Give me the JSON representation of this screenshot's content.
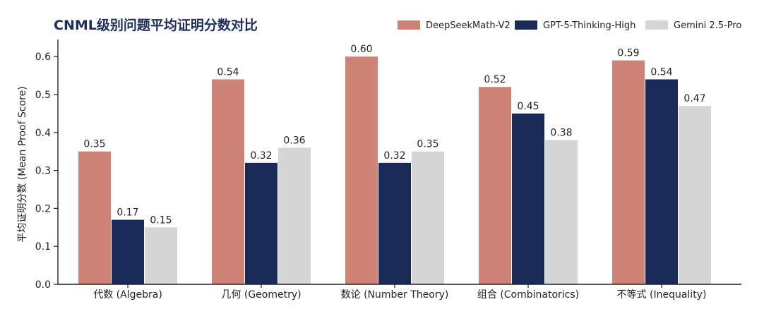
{
  "chart_data": {
    "type": "bar",
    "title": "CNML级别问题平均证明分数对比",
    "xlabel": "",
    "ylabel": "平均证明分数 (Mean Proof Score)",
    "ylim": [
      0,
      0.65
    ],
    "yticks": [
      "0.0",
      "0.1",
      "0.2",
      "0.3",
      "0.4",
      "0.5",
      "0.6"
    ],
    "grid": false,
    "legend_position": "top-right",
    "categories": [
      "代数 (Algebra)",
      "几何 (Geometry)",
      "数论 (Number Theory)",
      "组合 (Combinatorics)",
      "不等式 (Inequality)"
    ],
    "series": [
      {
        "name": "DeepSeekMath-V2",
        "color": "#cf8276",
        "values": [
          0.35,
          0.54,
          0.6,
          0.52,
          0.59
        ],
        "labels": [
          "0.35",
          "0.54",
          "0.60",
          "0.52",
          "0.59"
        ]
      },
      {
        "name": "GPT-5-Thinking-High",
        "color": "#1a2a56",
        "values": [
          0.17,
          0.32,
          0.32,
          0.45,
          0.54
        ],
        "labels": [
          "0.17",
          "0.32",
          "0.32",
          "0.45",
          "0.54"
        ]
      },
      {
        "name": "Gemini 2.5-Pro",
        "color": "#d6d6d6",
        "values": [
          0.15,
          0.36,
          0.35,
          0.38,
          0.47
        ],
        "labels": [
          "0.15",
          "0.36",
          "0.35",
          "0.38",
          "0.47"
        ]
      }
    ]
  }
}
